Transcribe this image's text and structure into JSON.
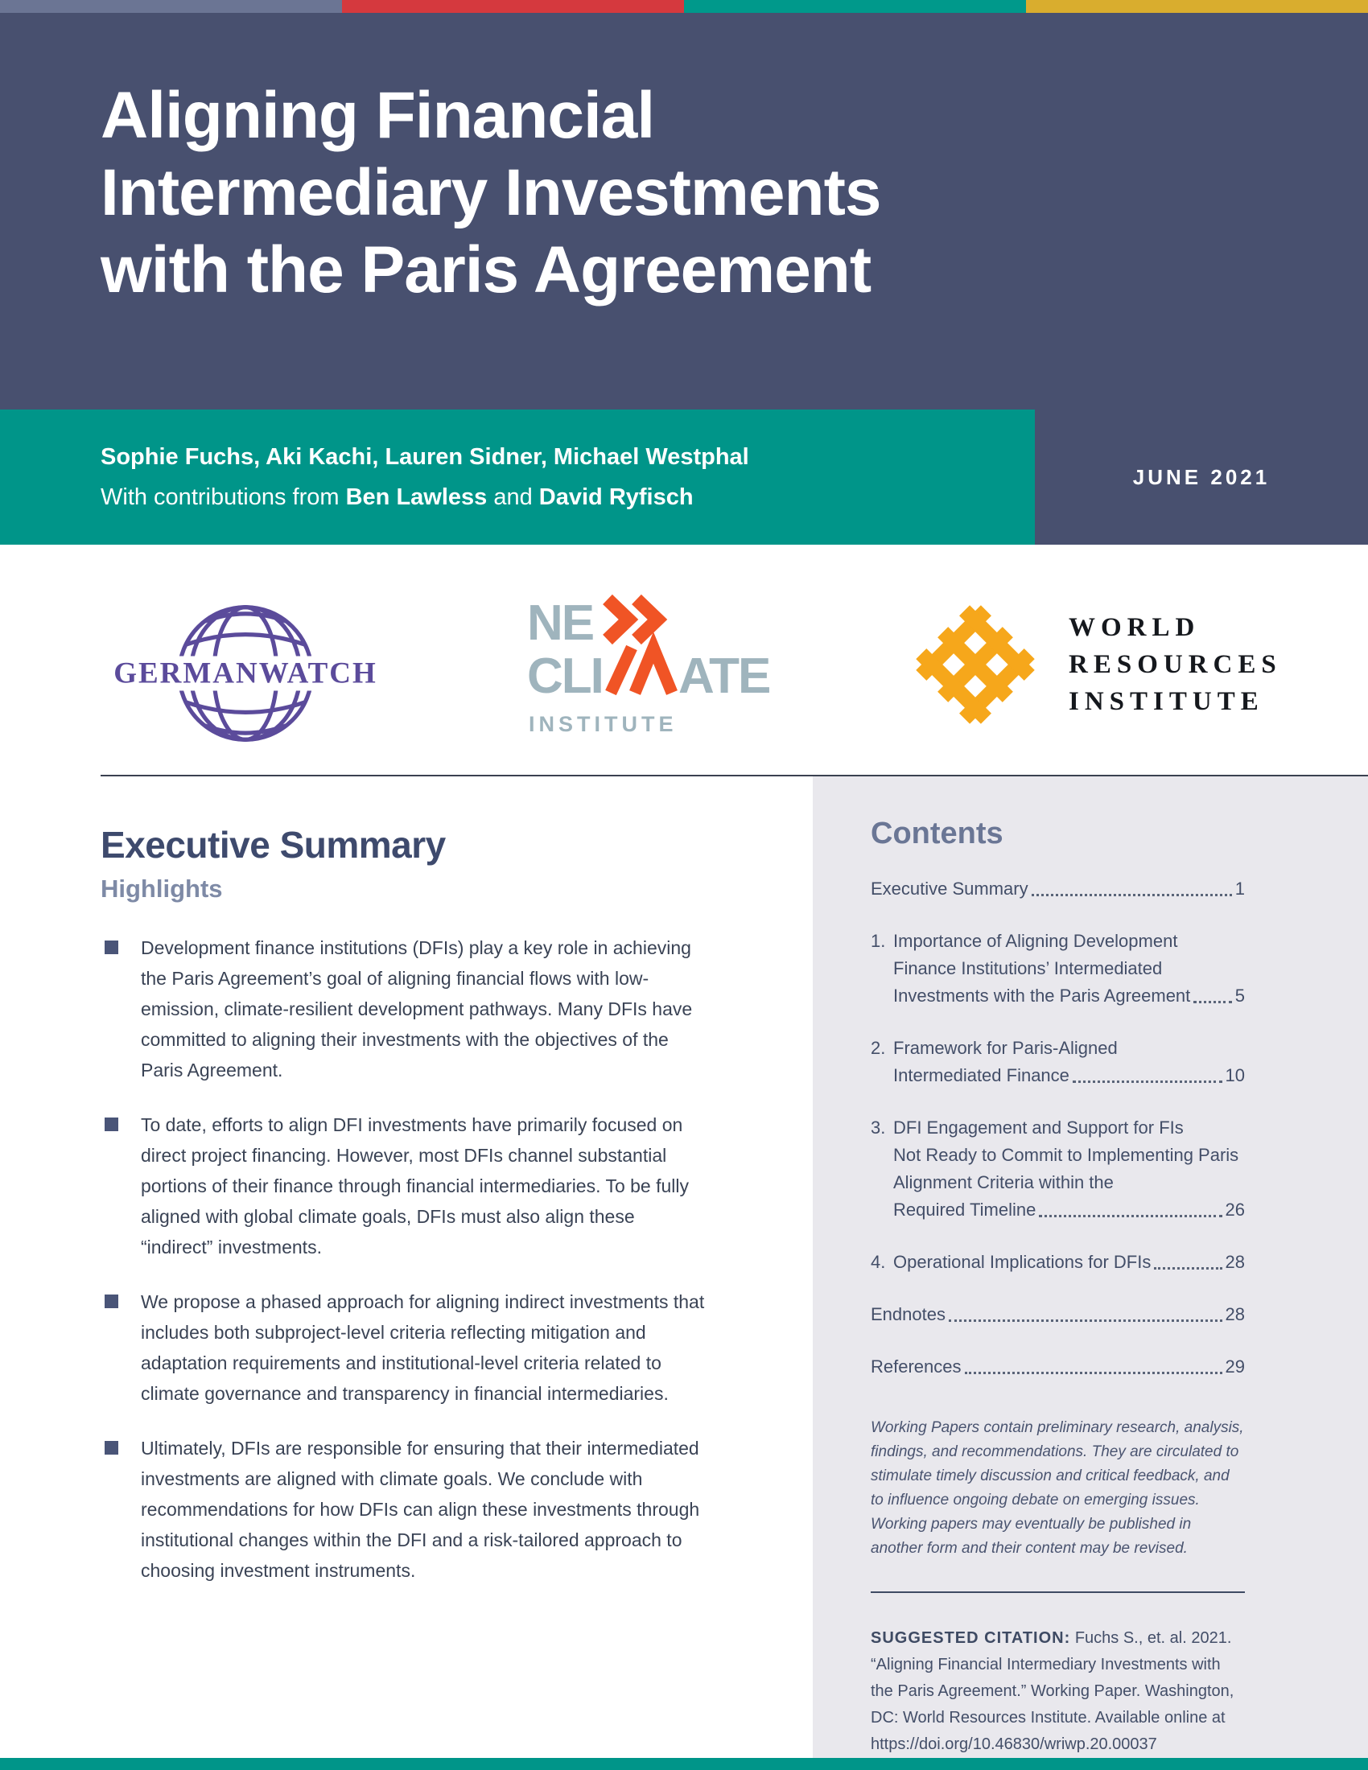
{
  "page": {
    "top_strip_colors": [
      "#6b7594",
      "#d5393e",
      "#00998b",
      "#d9ad2e"
    ],
    "accent_teal": "#009589",
    "header_navy": "#48506f",
    "date": "JUNE 2021"
  },
  "header": {
    "title_lines": [
      "Aligning Financial",
      "Intermediary Investments",
      "with the Paris Agreement"
    ]
  },
  "byline": {
    "authors": "Sophie Fuchs, Aki Kachi, Lauren Sidner, Michael Westphal",
    "contrib_prefix": "With contributions from ",
    "contrib_name1": "Ben Lawless",
    "contrib_and": " and ",
    "contrib_name2": "David Ryfisch"
  },
  "logos": {
    "germanwatch": "GERMANWATCH",
    "newclimate_line1_gray": "NE",
    "newclimate_line2_pre": "CLI",
    "newclimate_line2_post": "ATE",
    "newclimate_sub": "INSTITUTE",
    "wri_lines": [
      "WORLD",
      "RESOURCES",
      "INSTITUTE"
    ]
  },
  "main": {
    "heading": "Executive Summary",
    "subheading": "Highlights",
    "bullets": [
      "Development finance institutions (DFIs) play a key role in achieving the Paris Agreement’s goal of aligning financial flows with low-emission, climate-resilient development pathways. Many DFIs have committed to aligning their investments with the objectives of the Paris Agreement.",
      "To date, efforts to align DFI investments have primarily focused on direct project financing. However, most DFIs channel substantial portions of their finance through financial intermediaries. To be fully aligned with global climate goals, DFIs must also align these “indirect” investments.",
      "We propose a phased approach for aligning indirect investments that includes both subproject-level criteria reflecting mitigation and adaptation requirements and institutional-level criteria related to climate governance and transparency in financial intermediaries.",
      "Ultimately, DFIs are responsible for ensuring that their intermediated investments are aligned with climate goals. We conclude with recommendations for how DFIs can align these investments through institutional changes within the DFI and a risk-tailored approach to choosing investment instruments."
    ]
  },
  "sidebar": {
    "heading": "Contents",
    "toc": [
      {
        "lines": [
          "Executive Summary"
        ],
        "page": "1"
      },
      {
        "num": "1.",
        "lines": [
          "Importance of Aligning Development",
          "Finance Institutions’ Intermediated",
          "Investments with the Paris Agreement"
        ],
        "page": "5"
      },
      {
        "num": "2.",
        "lines": [
          "Framework for Paris-Aligned",
          "Intermediated Finance"
        ],
        "page": "10"
      },
      {
        "num": "3.",
        "lines": [
          "DFI Engagement and Support for FIs",
          "Not Ready to Commit to Implementing Paris",
          "Alignment Criteria within the",
          "Required Timeline"
        ],
        "page": "26"
      },
      {
        "num": "4.",
        "lines": [
          "Operational Implications for DFIs"
        ],
        "page": "28"
      },
      {
        "lines": [
          "Endnotes"
        ],
        "page": "28"
      },
      {
        "lines": [
          "References"
        ],
        "page": "29"
      }
    ],
    "note": "Working Papers contain preliminary research, analysis, findings, and recommendations. They are circulated to stimulate timely discussion and critical feedback, and to influence ongoing debate on emerging issues. Working papers may eventually be published in another form and their content may be revised.",
    "citation_label": "SUGGESTED CITATION:",
    "citation_text": " Fuchs S., et. al. 2021. “Aligning Financial Intermediary Investments with the Paris Agreement.” Working Paper. Washington, DC: World Resources Institute. Available online at https://doi.org/10.46830/wriwp.20.00037"
  }
}
